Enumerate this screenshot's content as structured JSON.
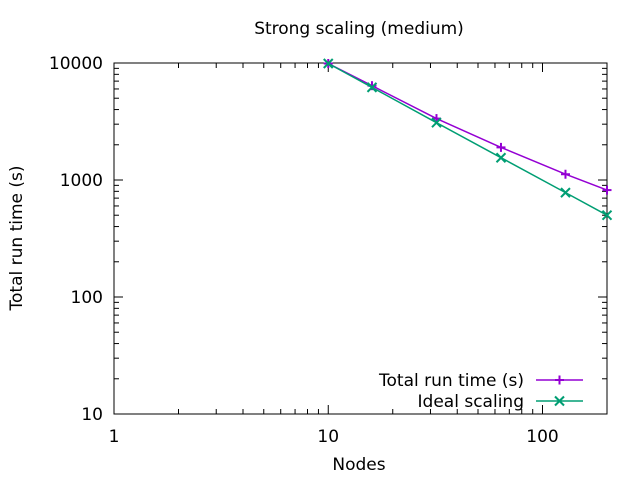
{
  "chart_data": {
    "type": "line",
    "title": "Strong scaling (medium)",
    "xlabel": "Nodes",
    "ylabel": "Total run time (s)",
    "xscale": "log",
    "yscale": "log",
    "xlim": [
      1,
      200
    ],
    "ylim": [
      10,
      10000
    ],
    "xticks": [
      1,
      10,
      100
    ],
    "xtick_labels": [
      "1",
      "10",
      "100"
    ],
    "yticks": [
      10,
      100,
      1000,
      10000
    ],
    "ytick_labels": [
      "10",
      "100",
      "1000",
      "10000"
    ],
    "grid": false,
    "legend_position": "bottom-right",
    "series": [
      {
        "name": "Total run time (s)",
        "color": "#9400d3",
        "marker": "plus",
        "x": [
          10,
          16,
          32,
          64,
          128,
          200
        ],
        "y": [
          9900,
          6400,
          3350,
          1900,
          1120,
          820
        ]
      },
      {
        "name": "Ideal scaling",
        "color": "#009e73",
        "marker": "cross",
        "x": [
          10,
          16,
          32,
          64,
          128,
          200
        ],
        "y": [
          9900,
          6190,
          3090,
          1550,
          780,
          500
        ]
      }
    ]
  }
}
